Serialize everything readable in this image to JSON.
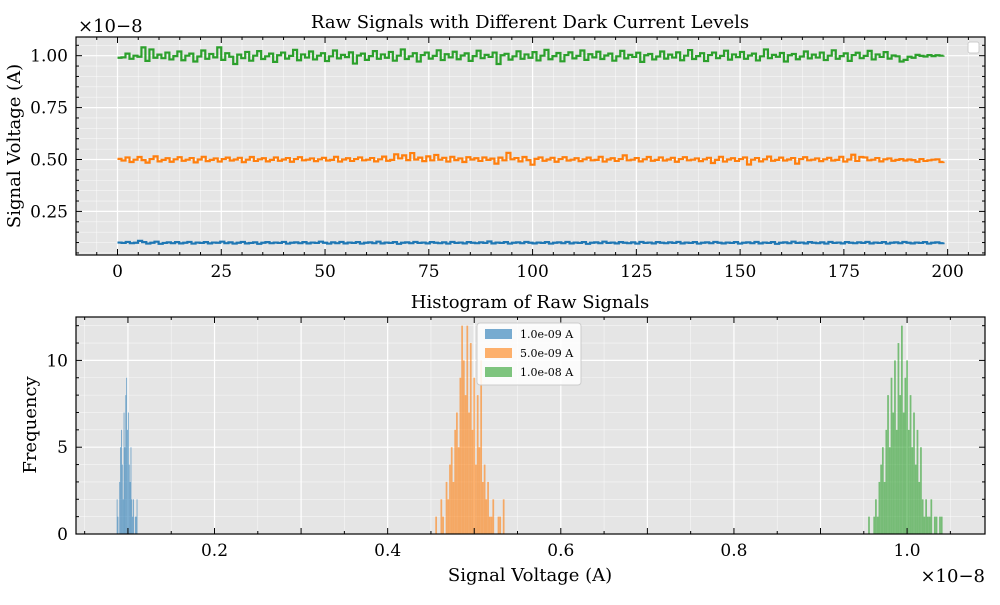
{
  "chart_data": [
    {
      "type": "line",
      "title": "Raw Signals with Different Dark Current Levels",
      "xlabel": "",
      "ylabel": "Signal Voltage (A)",
      "y_offset_label": "×10−8",
      "xlim": [
        -10,
        209
      ],
      "ylim": [
        0.04,
        1.09
      ],
      "x_ticks": [
        0,
        25,
        50,
        75,
        100,
        125,
        150,
        175,
        200
      ],
      "x_tick_labels": [
        "0",
        "25",
        "50",
        "75",
        "100",
        "125",
        "150",
        "175",
        "200"
      ],
      "y_ticks": [
        0.25,
        0.5,
        0.75,
        1.0
      ],
      "y_tick_labels": [
        "0.25",
        "0.50",
        "0.75",
        "1.00"
      ],
      "grid": true,
      "legend": "top-right (empty)",
      "drawstyle": "steps",
      "series": [
        {
          "color": "#1f77b4",
          "x_start": 0,
          "x_end": 199,
          "values": [
            0.1,
            0.098,
            0.103,
            0.097,
            0.099,
            0.108,
            0.102,
            0.095,
            0.099,
            0.104,
            0.094,
            0.098,
            0.101,
            0.097,
            0.102,
            0.096,
            0.099,
            0.103,
            0.095,
            0.1,
            0.098,
            0.102,
            0.096,
            0.1,
            0.099,
            0.104,
            0.097,
            0.101,
            0.095,
            0.099,
            0.103,
            0.096,
            0.098,
            0.101,
            0.094,
            0.099,
            0.102,
            0.097,
            0.1,
            0.098,
            0.103,
            0.095,
            0.099,
            0.101,
            0.097,
            0.102,
            0.096,
            0.1,
            0.098,
            0.104,
            0.099,
            0.095,
            0.101,
            0.097,
            0.103,
            0.096,
            0.1,
            0.098,
            0.102,
            0.095,
            0.099,
            0.101,
            0.097,
            0.104,
            0.096,
            0.1,
            0.098,
            0.102,
            0.094,
            0.099,
            0.101,
            0.097,
            0.103,
            0.098,
            0.1,
            0.096,
            0.102,
            0.099,
            0.097,
            0.101,
            0.095,
            0.103,
            0.098,
            0.1,
            0.096,
            0.102,
            0.099,
            0.097,
            0.101,
            0.098,
            0.105,
            0.096,
            0.1,
            0.098,
            0.102,
            0.095,
            0.099,
            0.101,
            0.097,
            0.103,
            0.099,
            0.096,
            0.1,
            0.098,
            0.102,
            0.095,
            0.099,
            0.101,
            0.097,
            0.103,
            0.096,
            0.1,
            0.098,
            0.102,
            0.094,
            0.099,
            0.101,
            0.097,
            0.104,
            0.098,
            0.1,
            0.096,
            0.102,
            0.099,
            0.097,
            0.101,
            0.095,
            0.103,
            0.098,
            0.1,
            0.096,
            0.102,
            0.099,
            0.097,
            0.101,
            0.098,
            0.103,
            0.096,
            0.1,
            0.098,
            0.102,
            0.095,
            0.099,
            0.101,
            0.097,
            0.103,
            0.099,
            0.096,
            0.1,
            0.098,
            0.102,
            0.095,
            0.099,
            0.101,
            0.097,
            0.103,
            0.096,
            0.1,
            0.098,
            0.102,
            0.094,
            0.099,
            0.101,
            0.097,
            0.104,
            0.098,
            0.1,
            0.096,
            0.102,
            0.099,
            0.097,
            0.101,
            0.095,
            0.103,
            0.098,
            0.1,
            0.096,
            0.102,
            0.099,
            0.097,
            0.101,
            0.098,
            0.103,
            0.096,
            0.1,
            0.098,
            0.102,
            0.095,
            0.099,
            0.101,
            0.097,
            0.103,
            0.099,
            0.096,
            0.1,
            0.098,
            0.102,
            0.095,
            0.099,
            0.101,
            0.097,
            0.1
          ]
        },
        {
          "color": "#ff7f0e",
          "x_start": 0,
          "x_end": 199,
          "values": [
            0.503,
            0.495,
            0.51,
            0.488,
            0.499,
            0.512,
            0.497,
            0.485,
            0.502,
            0.515,
            0.491,
            0.498,
            0.506,
            0.489,
            0.501,
            0.511,
            0.494,
            0.499,
            0.507,
            0.486,
            0.5,
            0.513,
            0.492,
            0.498,
            0.505,
            0.49,
            0.502,
            0.509,
            0.495,
            0.5,
            0.508,
            0.487,
            0.499,
            0.512,
            0.493,
            0.501,
            0.506,
            0.491,
            0.498,
            0.51,
            0.494,
            0.5,
            0.507,
            0.489,
            0.502,
            0.511,
            0.496,
            0.499,
            0.505,
            0.492,
            0.501,
            0.508,
            0.495,
            0.498,
            0.513,
            0.49,
            0.5,
            0.506,
            0.493,
            0.502,
            0.51,
            0.496,
            0.499,
            0.507,
            0.491,
            0.501,
            0.514,
            0.494,
            0.498,
            0.525,
            0.505,
            0.52,
            0.497,
            0.531,
            0.5,
            0.509,
            0.492,
            0.515,
            0.496,
            0.522,
            0.499,
            0.508,
            0.49,
            0.513,
            0.497,
            0.505,
            0.488,
            0.511,
            0.5,
            0.506,
            0.493,
            0.51,
            0.498,
            0.504,
            0.48,
            0.509,
            0.496,
            0.532,
            0.501,
            0.507,
            0.491,
            0.512,
            0.497,
            0.475,
            0.503,
            0.51,
            0.494,
            0.5,
            0.508,
            0.489,
            0.502,
            0.511,
            0.495,
            0.499,
            0.506,
            0.492,
            0.501,
            0.509,
            0.496,
            0.498,
            0.513,
            0.49,
            0.5,
            0.506,
            0.493,
            0.502,
            0.52,
            0.496,
            0.499,
            0.507,
            0.491,
            0.501,
            0.512,
            0.494,
            0.498,
            0.51,
            0.495,
            0.5,
            0.508,
            0.489,
            0.502,
            0.511,
            0.496,
            0.499,
            0.505,
            0.492,
            0.501,
            0.508,
            0.483,
            0.498,
            0.513,
            0.49,
            0.5,
            0.506,
            0.493,
            0.502,
            0.51,
            0.476,
            0.499,
            0.507,
            0.491,
            0.501,
            0.514,
            0.494,
            0.498,
            0.509,
            0.495,
            0.5,
            0.507,
            0.48,
            0.502,
            0.511,
            0.496,
            0.499,
            0.505,
            0.492,
            0.501,
            0.508,
            0.495,
            0.498,
            0.513,
            0.49,
            0.5,
            0.523,
            0.493,
            0.512,
            0.51,
            0.496,
            0.499,
            0.507,
            0.491,
            0.501,
            0.505,
            0.494,
            0.498,
            0.502,
            0.495,
            0.5,
            0.497,
            0.489,
            0.502,
            0.493,
            0.496,
            0.499,
            0.501,
            0.488,
            0.49
          ]
        },
        {
          "color": "#2ca02c",
          "x_start": 0,
          "x_end": 199,
          "values": [
            0.99,
            0.992,
            1.01,
            0.985,
            1.0,
            0.995,
            1.04,
            0.975,
            1.03,
            0.99,
            1.005,
            0.988,
            1.015,
            0.982,
            0.998,
            1.02,
            0.978,
            1.0,
            1.01,
            0.972,
            0.996,
            1.025,
            0.985,
            1.008,
            0.992,
            1.04,
            0.98,
            1.012,
            0.995,
            0.96,
            1.005,
            0.988,
            1.018,
            0.976,
            1.0,
            1.022,
            0.984,
            0.997,
            1.01,
            0.97,
            1.002,
            1.015,
            0.986,
            0.999,
            1.028,
            0.978,
            1.006,
            0.991,
            1.02,
            0.982,
            1.0,
            1.012,
            0.974,
            0.997,
            1.025,
            0.987,
            1.004,
            0.993,
            1.016,
            0.962,
            1.001,
            1.01,
            0.98,
            0.998,
            1.022,
            0.985,
            1.006,
            0.99,
            1.018,
            0.976,
            1.0,
            1.03,
            0.984,
            0.997,
            1.012,
            0.972,
            1.003,
            1.015,
            0.986,
            0.999,
            1.026,
            0.979,
            1.007,
            0.992,
            1.019,
            0.983,
            1.001,
            1.011,
            0.975,
            0.998,
            1.024,
            0.988,
            1.004,
            0.994,
            1.015,
            0.96,
            1.002,
            1.009,
            0.981,
            0.997,
            1.021,
            0.985,
            1.006,
            0.99,
            1.017,
            0.977,
            1.0,
            1.028,
            0.983,
            0.998,
            1.013,
            0.973,
            1.003,
            1.016,
            0.987,
            0.999,
            1.025,
            0.98,
            1.007,
            0.992,
            1.019,
            0.984,
            1.001,
            1.01,
            0.976,
            0.997,
            1.023,
            0.987,
            1.004,
            0.994,
            1.014,
            0.97,
            1.002,
            1.008,
            0.982,
            0.996,
            1.02,
            0.986,
            1.005,
            0.991,
            1.016,
            0.978,
            1.0,
            1.027,
            0.984,
            0.998,
            1.012,
            0.974,
            1.003,
            1.015,
            0.988,
            0.999,
            1.024,
            0.981,
            1.006,
            0.993,
            1.018,
            0.985,
            1.001,
            1.01,
            0.977,
            0.997,
            1.03,
            0.988,
            1.004,
            0.995,
            1.013,
            0.972,
            1.002,
            1.008,
            0.983,
            0.996,
            1.02,
            0.987,
            1.005,
            0.991,
            1.015,
            0.979,
            1.0,
            1.026,
            0.985,
            0.998,
            1.011,
            0.975,
            1.003,
            1.014,
            0.988,
            0.999,
            1.023,
            0.982,
            1.006,
            0.994,
            1.017,
            0.986,
            1.001,
            0.997,
            0.972,
            0.98,
            0.995,
            0.99,
            1.004,
            0.999,
            0.996,
            1.003,
            0.998,
            1.002,
            1.0,
            1.001
          ]
        }
      ]
    },
    {
      "type": "bar",
      "subtype": "histogram",
      "title": "Histogram of Raw Signals",
      "xlabel": "Signal Voltage (A)",
      "ylabel": "Frequency",
      "x_offset_label": "×10−8",
      "xlim": [
        0.04,
        1.09
      ],
      "ylim": [
        0,
        12.5
      ],
      "x_ticks": [
        0.2,
        0.4,
        0.6,
        0.8,
        1.0
      ],
      "x_tick_labels": [
        "0.2",
        "0.4",
        "0.6",
        "0.8",
        "1.0"
      ],
      "y_ticks": [
        0,
        5,
        10
      ],
      "y_tick_labels": [
        "0",
        "5",
        "10"
      ],
      "grid": true,
      "legend": "top-center",
      "series": [
        {
          "name": "1.0e-09 A",
          "color": "#1f77b4",
          "bin_start": 0.087,
          "bin_width": 0.001,
          "counts": [
            2,
            1,
            0,
            3,
            5,
            6,
            4,
            2,
            7,
            5,
            8,
            9,
            6,
            7,
            4,
            3,
            5,
            2,
            1,
            2,
            0,
            1,
            1,
            2
          ]
        },
        {
          "name": "5.0e-09 A",
          "color": "#ff7f0e",
          "bin_start": 0.455,
          "bin_width": 0.002,
          "counts": [
            1,
            0,
            0,
            2,
            1,
            0,
            3,
            2,
            4,
            5,
            3,
            6,
            7,
            5,
            9,
            12,
            10,
            8,
            12,
            7,
            11,
            6,
            9,
            4,
            8,
            5,
            10,
            3,
            4,
            2,
            3,
            1,
            1,
            2,
            0,
            0,
            1,
            1,
            0,
            2
          ]
        },
        {
          "name": "1.0e-08 A",
          "color": "#2ca02c",
          "bin_start": 0.955,
          "bin_width": 0.002,
          "counts": [
            1,
            0,
            0,
            1,
            2,
            1,
            3,
            4,
            5,
            3,
            6,
            8,
            5,
            9,
            7,
            10,
            6,
            11,
            8,
            12,
            7,
            9,
            10,
            6,
            8,
            5,
            7,
            4,
            6,
            3,
            5,
            2,
            1,
            2,
            1,
            1,
            2,
            0,
            1,
            1,
            0,
            1,
            1,
            0,
            0
          ]
        }
      ]
    }
  ]
}
